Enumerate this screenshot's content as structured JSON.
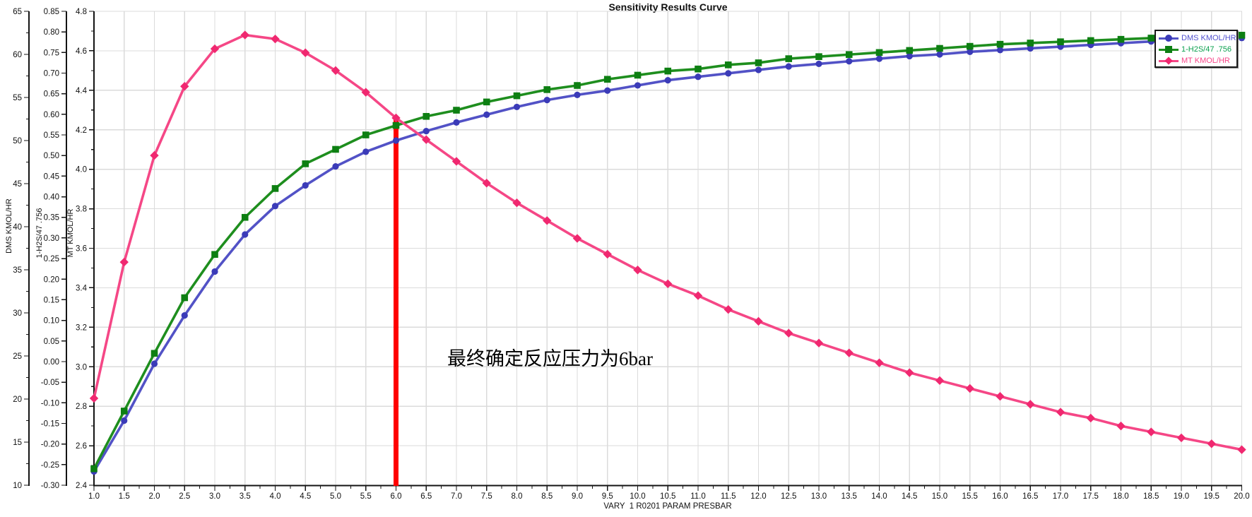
{
  "title": "Sensitivity Results Curve",
  "annotation": {
    "text": "最终确定反应压力为6bar"
  },
  "legend": {
    "items": [
      {
        "label": "DMS KMOL/HR",
        "color": "#5050CE",
        "marker": "circle"
      },
      {
        "label": "1-H2S/47 .756",
        "color": "#0AA04E",
        "marker": "square"
      },
      {
        "label": "MT KMOL/HR",
        "color": "#F74689",
        "marker": "diamond"
      }
    ]
  },
  "colors": {
    "grid": "#DBDBDB",
    "axis": "#141414",
    "background": "#FFFFFF",
    "ref_line": "#FF0000"
  },
  "chart_data": {
    "type": "line",
    "title": "Sensitivity Results Curve",
    "legend_position": "top-right",
    "grid": true,
    "x_axis": {
      "label": "VARY  1 R0201 PARAM PRESBAR",
      "min": 1.0,
      "max": 20.0,
      "minor_step": 0.25,
      "tick_labels": [
        "1.0",
        "1.5",
        "2.0",
        "2.5",
        "3.0",
        "3.5",
        "4.0",
        "4.5",
        "5.0",
        "5.5",
        "6.0",
        "6.5",
        "7.0",
        "7.5",
        "8.0",
        "8.5",
        "9.0",
        "9.5",
        "10.0",
        "10.5",
        "11.0",
        "11.5",
        "12.0",
        "12.5",
        "13.0",
        "13.5",
        "14.0",
        "14.5",
        "15.0",
        "15.5",
        "16.0",
        "16.5",
        "17.0",
        "17.5",
        "18.0",
        "18.5",
        "19.0",
        "19.5",
        "20.0"
      ]
    },
    "y_axes": [
      {
        "id": "dms",
        "label": "DMS KMOL/HR",
        "min": 10,
        "max": 65,
        "minor_step": 2.5,
        "tick_labels": [
          "10",
          "15",
          "20",
          "25",
          "30",
          "35",
          "40",
          "45",
          "50",
          "55",
          "60",
          "65"
        ]
      },
      {
        "id": "h2s",
        "label": "1-H2S/47 .756",
        "min": -0.3,
        "max": 0.85,
        "minor_step": null,
        "tick_labels": [
          "-0.30",
          "-0.25",
          "-0.20",
          "-0.15",
          "-0.10",
          "-0.05",
          "0.00",
          "0.05",
          "0.10",
          "0.15",
          "0.20",
          "0.25",
          "0.30",
          "0.35",
          "0.40",
          "0.45",
          "0.50",
          "0.55",
          "0.60",
          "0.65",
          "0.70",
          "0.75",
          "0.80",
          "0.85"
        ]
      },
      {
        "id": "mt",
        "label": "MT KMOL/HR",
        "min": 2.4,
        "max": 4.8,
        "minor_step": 0.1,
        "tick_labels": [
          "2.4",
          "2.6",
          "2.8",
          "3.0",
          "3.2",
          "3.4",
          "3.6",
          "3.8",
          "4.0",
          "4.2",
          "4.4",
          "4.6",
          "4.8"
        ]
      }
    ],
    "x": [
      1.0,
      1.5,
      2.0,
      2.5,
      3.0,
      3.5,
      4.0,
      4.5,
      5.0,
      5.5,
      6.0,
      6.5,
      7.0,
      7.5,
      8.0,
      8.5,
      9.0,
      9.5,
      10.0,
      10.5,
      11.0,
      11.5,
      12.0,
      12.5,
      13.0,
      13.5,
      14.0,
      14.5,
      15.0,
      15.5,
      16.0,
      16.5,
      17.0,
      17.5,
      18.0,
      18.5,
      19.0,
      19.5,
      20.0
    ],
    "series": [
      {
        "name": "DMS KMOL/HR",
        "axis": "dms",
        "marker": "circle",
        "line_color": "#5252C6",
        "marker_color": "#3B3BB8",
        "values": [
          11.6,
          17.5,
          24.1,
          29.7,
          34.8,
          39.1,
          42.4,
          44.8,
          47.0,
          48.7,
          50.0,
          51.1,
          52.1,
          53.0,
          53.9,
          54.7,
          55.3,
          55.8,
          56.4,
          57.0,
          57.4,
          57.8,
          58.2,
          58.6,
          58.9,
          59.2,
          59.5,
          59.8,
          60.0,
          60.3,
          60.5,
          60.7,
          60.9,
          61.1,
          61.3,
          61.5,
          61.6,
          61.8,
          61.9
        ]
      },
      {
        "name": "1-H2S/47 .756",
        "axis": "h2s",
        "marker": "square",
        "line_color": "#1E8E1E",
        "marker_color": "#0D7F12",
        "values": [
          -0.26,
          -0.12,
          0.02,
          0.155,
          0.26,
          0.35,
          0.42,
          0.48,
          0.515,
          0.55,
          0.573,
          0.595,
          0.61,
          0.63,
          0.645,
          0.66,
          0.67,
          0.685,
          0.695,
          0.705,
          0.71,
          0.72,
          0.725,
          0.735,
          0.74,
          0.745,
          0.75,
          0.755,
          0.76,
          0.765,
          0.77,
          0.773,
          0.776,
          0.779,
          0.782,
          0.785,
          0.788,
          0.79,
          0.792
        ]
      },
      {
        "name": "MT KMOL/HR",
        "axis": "mt",
        "marker": "diamond",
        "line_color": "#F54786",
        "marker_color": "#F02870",
        "values": [
          2.84,
          3.53,
          4.07,
          4.42,
          4.61,
          4.68,
          4.66,
          4.59,
          4.5,
          4.39,
          4.26,
          4.15,
          4.04,
          3.93,
          3.83,
          3.74,
          3.65,
          3.57,
          3.49,
          3.42,
          3.36,
          3.29,
          3.23,
          3.17,
          3.12,
          3.07,
          3.02,
          2.97,
          2.93,
          2.89,
          2.85,
          2.81,
          2.77,
          2.74,
          2.7,
          2.67,
          2.64,
          2.61,
          2.58
        ]
      }
    ],
    "ref_line": {
      "x": 6.0,
      "axis": "mt",
      "from": 2.4,
      "to": 4.27,
      "color": "#FF0000",
      "width": 7
    }
  }
}
